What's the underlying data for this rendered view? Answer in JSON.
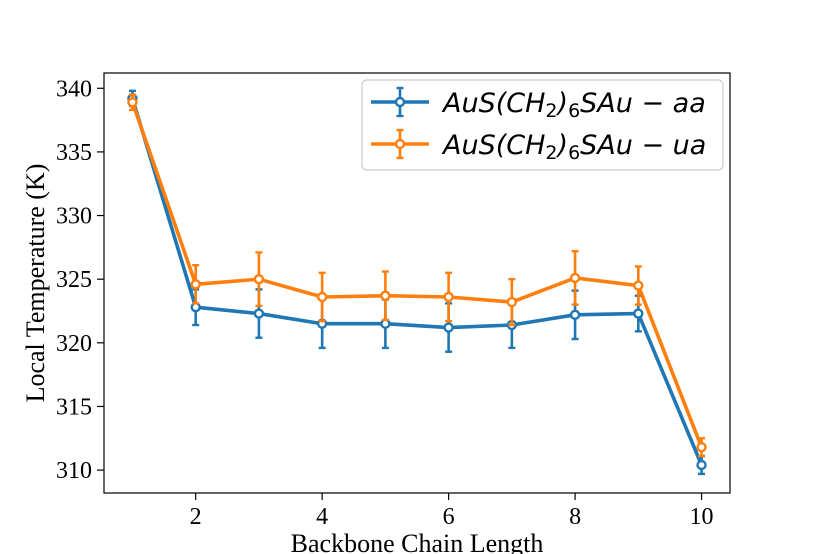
{
  "chart_data": {
    "type": "line",
    "xlabel": "Backbone Chain Length",
    "ylabel": "Local Temperature (K)",
    "xlim": [
      0.55,
      10.45
    ],
    "ylim": [
      308.2,
      341.2
    ],
    "xticks": [
      2,
      4,
      6,
      8,
      10
    ],
    "yticks": [
      310,
      315,
      320,
      325,
      330,
      335,
      340
    ],
    "grid": false,
    "legend_position": "upper-right",
    "x": [
      1,
      2,
      3,
      4,
      5,
      6,
      7,
      8,
      9,
      10
    ],
    "series": [
      {
        "name_prefix": "AuS(CH",
        "name_sub": "2",
        "name_mid": ")",
        "name_sub2": "6",
        "name_suffix": "SAu − aa",
        "color": "#1f77b4",
        "values": [
          339.2,
          322.8,
          322.3,
          321.5,
          321.5,
          321.2,
          321.4,
          322.2,
          322.3,
          310.4
        ],
        "errors": [
          0.6,
          1.4,
          1.9,
          1.9,
          1.9,
          1.9,
          1.8,
          1.9,
          1.4,
          0.7
        ]
      },
      {
        "name_prefix": "AuS(CH",
        "name_sub": "2",
        "name_mid": ")",
        "name_sub2": "6",
        "name_suffix": "SAu − ua",
        "color": "#ff7f0e",
        "values": [
          338.9,
          324.6,
          325.0,
          323.6,
          323.7,
          323.6,
          323.2,
          325.1,
          324.5,
          311.8
        ],
        "errors": [
          0.6,
          1.5,
          2.1,
          1.9,
          1.9,
          1.9,
          1.8,
          2.1,
          1.5,
          0.7
        ]
      }
    ]
  }
}
